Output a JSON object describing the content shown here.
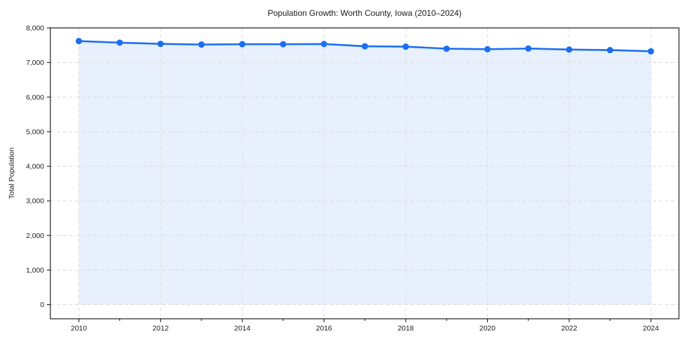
{
  "chart_data": {
    "type": "area",
    "title": "Population Growth: Worth County, Iowa (2010–2024)",
    "ylabel": "Total Population",
    "xlabel": "",
    "x": [
      2010,
      2011,
      2012,
      2013,
      2014,
      2015,
      2016,
      2017,
      2018,
      2019,
      2020,
      2021,
      2022,
      2023,
      2024
    ],
    "values": [
      7620,
      7575,
      7540,
      7520,
      7530,
      7530,
      7535,
      7470,
      7460,
      7400,
      7385,
      7405,
      7375,
      7360,
      7325
    ],
    "ylim": [
      0,
      8000
    ],
    "yticks": [
      0,
      1000,
      2000,
      3000,
      4000,
      5000,
      6000,
      7000,
      8000
    ],
    "xticks_labeled": [
      2010,
      2012,
      2014,
      2016,
      2018,
      2020,
      2022,
      2024
    ],
    "x_minor_ticks_every_year": true,
    "grid": true,
    "grid_style": "dashed",
    "legend": false,
    "marker": "circle",
    "colors": {
      "line": "#1b6ff2",
      "marker": "#1b6ff2",
      "fill": "#1b6ff2",
      "fill_opacity": 0.1,
      "grid": "#d9d9d9",
      "axis": "#1a1a1a",
      "text": "#1a1a1a",
      "background": "#ffffff"
    }
  }
}
